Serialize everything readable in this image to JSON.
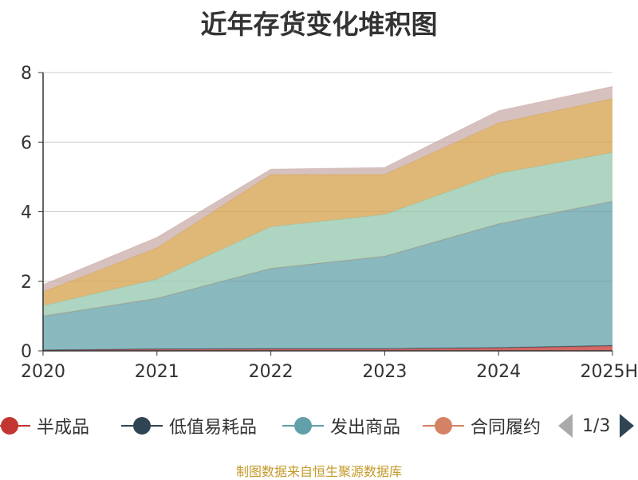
{
  "title": "近年存货变化堆积图",
  "source_note": "制图数据来自恒生聚源数据库",
  "legend_pager": "1/3",
  "chart_data": {
    "type": "area",
    "stacked": true,
    "title": "近年存货变化堆积图",
    "categories": [
      "2020",
      "2021",
      "2022",
      "2023",
      "2024",
      "2025H"
    ],
    "ylim": [
      0,
      8
    ],
    "yticks": [
      0,
      2,
      4,
      6,
      8
    ],
    "grid": true,
    "legend_position": "bottom",
    "series": [
      {
        "name": "半成品",
        "color": "#c23531",
        "values": [
          0.02,
          0.04,
          0.05,
          0.05,
          0.08,
          0.14
        ]
      },
      {
        "name": "低值易耗品",
        "color": "#2f4554",
        "values": [
          0.01,
          0.02,
          0.02,
          0.02,
          0.02,
          0.02
        ]
      },
      {
        "name": "发出商品",
        "color": "#61a0a8",
        "values": [
          0.97,
          1.45,
          2.3,
          2.65,
          3.55,
          4.14
        ]
      },
      {
        "name": "合同履约",
        "color": "#d48265",
        "values": [
          0,
          0,
          0,
          0,
          0,
          0
        ]
      },
      {
        "color": "#91c7ae",
        "values": [
          0.3,
          0.55,
          1.2,
          1.2,
          1.45,
          1.4
        ]
      },
      {
        "color": "#d4a04a",
        "values": [
          0.4,
          0.9,
          1.5,
          1.15,
          1.45,
          1.55
        ]
      },
      {
        "color": "#c9aca8",
        "values": [
          0.2,
          0.3,
          0.15,
          0.2,
          0.35,
          0.35
        ]
      }
    ],
    "legend_visible": [
      "半成品",
      "低值易耗品",
      "发出商品",
      "合同履约"
    ]
  }
}
